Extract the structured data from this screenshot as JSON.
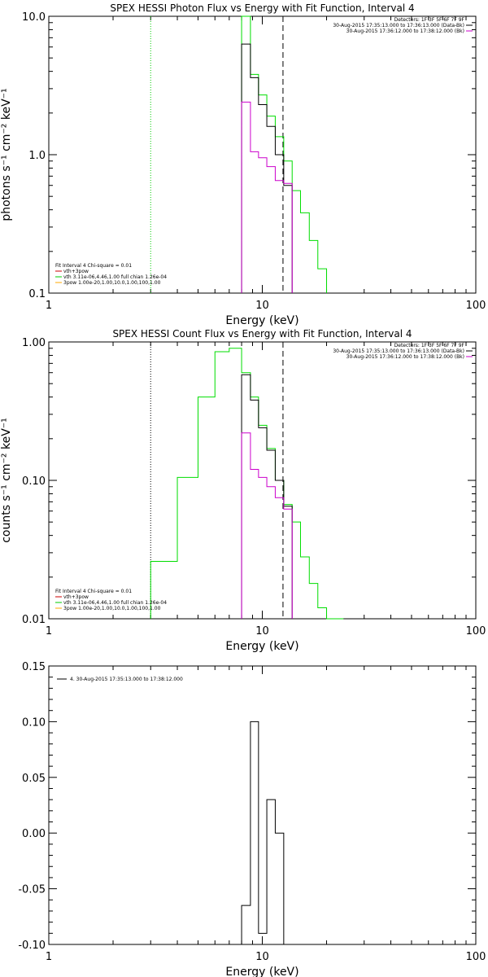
{
  "chart_data": [
    {
      "type": "line",
      "title": "SPEX HESSI Photon Flux vs Energy with Fit Function, Interval 4",
      "xlabel": "Energy (keV)",
      "ylabel": "photons s⁻¹ cm⁻² keV⁻¹",
      "xscale": "log",
      "yscale": "log",
      "xlim": [
        1,
        100
      ],
      "ylim": [
        0.1,
        10
      ],
      "xticks": [
        {
          "v": 1,
          "label": "1"
        },
        {
          "v": 10,
          "label": "10"
        },
        {
          "v": 100,
          "label": "100"
        }
      ],
      "yticks": [
        {
          "v": 0.1,
          "label": "0.1"
        },
        {
          "v": 1,
          "label": "1.0"
        },
        {
          "v": 10,
          "label": "10.0"
        }
      ],
      "vlines": [
        {
          "x": 3.0,
          "style": "dotted",
          "color": "#00cc00"
        },
        {
          "x": 12.5,
          "style": "dashed",
          "color": "#000000"
        }
      ],
      "legend_top": [
        {
          "text": "Detectors: 1F 3F 5F 6F 7F 9F",
          "color": "",
          "swatch": false
        },
        {
          "text": "30-Aug-2015 17:35:13.000 to 17:36:13.000 (Data-Bk)",
          "color": "#000000",
          "swatch": true
        },
        {
          "text": "30-Aug-2015 17:36:12.000 to 17:38:12.000 (Bk)",
          "color": "#cc00cc",
          "swatch": true
        }
      ],
      "legend_bottom": [
        {
          "text": "Fit Interval 4   Chi-square = 0.01",
          "color": "",
          "swatch": false
        },
        {
          "text": "vth+3pow",
          "color": "#cc0000",
          "swatch": true
        },
        {
          "text": "vth 3.11e-06,4.46,1.00  full chian 1.26e-04",
          "color": "#00cc00",
          "swatch": true
        },
        {
          "text": "3pow 1.00e-20,1.00,10.0,1.00,100,1.00",
          "color": "#ffaa00",
          "swatch": true
        }
      ],
      "series": [
        {
          "name": "vth+3pow",
          "color": "#00dd00",
          "edges": [
            8.0,
            8.8,
            9.6,
            10.5,
            11.5,
            12.6,
            13.8,
            15.1,
            16.6,
            18.2,
            20.0
          ],
          "values": [
            10.5,
            3.8,
            2.7,
            1.9,
            1.35,
            0.9,
            0.55,
            0.38,
            0.24,
            0.15,
            0.1
          ]
        },
        {
          "name": "Data-Bk",
          "color": "#000000",
          "edges": [
            8.0,
            8.8,
            9.6,
            10.5,
            11.5,
            12.6,
            13.8
          ],
          "values": [
            6.3,
            3.6,
            2.3,
            1.6,
            1.0,
            0.6
          ]
        },
        {
          "name": "Bk",
          "color": "#cc00cc",
          "edges": [
            8.0,
            8.8,
            9.6,
            10.5,
            11.5,
            12.6,
            13.8
          ],
          "values": [
            2.4,
            1.05,
            0.95,
            0.82,
            0.65,
            0.62
          ]
        }
      ]
    },
    {
      "type": "line",
      "title": "SPEX HESSI Count Flux vs Energy with Fit Function, Interval 4",
      "xlabel": "Energy (keV)",
      "ylabel": "counts s⁻¹ cm⁻² keV⁻¹",
      "xscale": "log",
      "yscale": "log",
      "xlim": [
        1,
        100
      ],
      "ylim": [
        0.01,
        1
      ],
      "xticks": [
        {
          "v": 1,
          "label": "1"
        },
        {
          "v": 10,
          "label": "10"
        },
        {
          "v": 100,
          "label": "100"
        }
      ],
      "yticks": [
        {
          "v": 0.01,
          "label": "0.01"
        },
        {
          "v": 0.1,
          "label": "0.10"
        },
        {
          "v": 1,
          "label": "1.00"
        }
      ],
      "vlines": [
        {
          "x": 3.0,
          "style": "dotted",
          "color": "#000000"
        },
        {
          "x": 12.5,
          "style": "dashed",
          "color": "#000000"
        }
      ],
      "legend_top": [
        {
          "text": "Detectors: 1F 3F 5F 6F 7F 9F",
          "color": "",
          "swatch": false
        },
        {
          "text": "30-Aug-2015 17:35:13.000 to 17:36:13.000 (Data-Bk)",
          "color": "#000000",
          "swatch": true
        },
        {
          "text": "30-Aug-2015 17:36:12.000 to 17:38:12.000 (Bk)",
          "color": "#cc00cc",
          "swatch": true
        }
      ],
      "legend_bottom": [
        {
          "text": "Fit Interval 4   Chi-square = 0.01",
          "color": "",
          "swatch": false
        },
        {
          "text": "vth+3pow",
          "color": "#cc0000",
          "swatch": true
        },
        {
          "text": "vth 3.11e-06,4.46,1.00  full chian 1.26e-04",
          "color": "#00cc00",
          "swatch": true
        },
        {
          "text": "3pow 1.00e-20,1.00,10.0,1.00,100,1.00",
          "color": "#ffaa00",
          "swatch": true
        }
      ],
      "series": [
        {
          "name": "vth+3pow",
          "color": "#00dd00",
          "edges": [
            3.0,
            4.0,
            5.0,
            6.0,
            7.0,
            8.0,
            8.8,
            9.6,
            10.5,
            11.5,
            12.6,
            13.8,
            15.1,
            16.6,
            18.2,
            20.0,
            22.0,
            24.0
          ],
          "values": [
            0.026,
            0.105,
            0.4,
            0.85,
            0.9,
            0.6,
            0.4,
            0.25,
            0.17,
            0.1,
            0.067,
            0.05,
            0.028,
            0.018,
            0.012,
            0.01,
            0.01
          ]
        },
        {
          "name": "Data-Bk",
          "color": "#000000",
          "edges": [
            8.0,
            8.8,
            9.6,
            10.5,
            11.5,
            12.6,
            13.8
          ],
          "values": [
            0.58,
            0.38,
            0.24,
            0.165,
            0.1,
            0.065
          ]
        },
        {
          "name": "Bk",
          "color": "#cc00cc",
          "edges": [
            8.0,
            8.8,
            9.6,
            10.5,
            11.5,
            12.6,
            13.8
          ],
          "values": [
            0.22,
            0.12,
            0.105,
            0.09,
            0.075,
            0.062
          ]
        }
      ]
    },
    {
      "type": "line",
      "title": "",
      "xlabel": "Energy (keV)",
      "ylabel": "",
      "xscale": "log",
      "yscale": "linear",
      "xlim": [
        1,
        100
      ],
      "ylim": [
        -0.1,
        0.15
      ],
      "xticks": [
        {
          "v": 1,
          "label": "1"
        },
        {
          "v": 10,
          "label": "10"
        },
        {
          "v": 100,
          "label": "100"
        }
      ],
      "yticks": [
        {
          "v": -0.1,
          "label": "-0.10"
        },
        {
          "v": -0.05,
          "label": "-0.05"
        },
        {
          "v": 0,
          "label": "0.00"
        },
        {
          "v": 0.05,
          "label": "0.05"
        },
        {
          "v": 0.1,
          "label": "0.10"
        },
        {
          "v": 0.15,
          "label": "0.15"
        }
      ],
      "vlines": [],
      "legend_top": [
        {
          "text": "4. 30-Aug-2015 17:35:13.000 to 17:38:12.000",
          "color": "#000000",
          "swatch": true
        }
      ],
      "legend_bottom": [],
      "series": [
        {
          "name": "4. 30-Aug-2015 17:35:13.000 to 17:38:12.000",
          "color": "#000000",
          "edges": [
            8.0,
            8.8,
            9.6,
            10.5,
            11.5,
            12.6,
            13.8
          ],
          "values": [
            -0.065,
            0.1,
            -0.09,
            0.03,
            0.0,
            -0.1
          ]
        }
      ]
    }
  ]
}
